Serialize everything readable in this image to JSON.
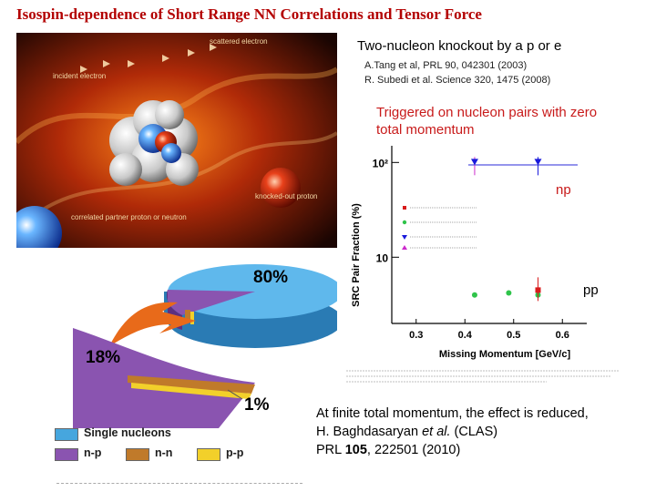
{
  "title": "Isospin-dependence of Short Range NN Correlations and Tensor Force",
  "photo": {
    "labels": {
      "scattered": "scattered electron",
      "incident": "incident electron",
      "knocked": "knocked-out proton",
      "correlated": "correlated partner proton or neutron"
    }
  },
  "right": {
    "heading": "Two-nucleon knockout by a p or e",
    "ref1": "A.Tang et al, PRL 90, 042301 (2003)",
    "ref2": "R. Subedi et al. Science 320, 1475 (2008)",
    "trigger_line1": "Triggered on nucleon pairs with zero",
    "trigger_line2": "total momentum"
  },
  "chart_data": {
    "type": "scatter",
    "ylabel": "SRC Pair Fraction (%)",
    "xlabel": "Missing Momentum [GeV/c]",
    "x_ticks": [
      "0.3",
      "0.4",
      "0.5",
      "0.6"
    ],
    "y_ticks": [
      "10²",
      "10"
    ],
    "xlim": [
      0.25,
      0.65
    ],
    "yscale": "log",
    "ylim": [
      2,
      150
    ],
    "annotations": [
      "np",
      "pp"
    ],
    "legend_position": "center-left",
    "series": [
      {
        "points": [
          [
            0.42,
            100
          ],
          [
            0.55,
            100
          ]
        ]
      },
      {
        "points": [
          [
            0.42,
            4.0
          ],
          [
            0.49,
            4.2
          ],
          [
            0.55,
            4.0
          ]
        ]
      },
      {
        "points": [
          [
            0.55,
            4.5
          ]
        ]
      }
    ],
    "colors": {
      "triangle": "#1a1adb",
      "marker_red": "#d81b1b",
      "marker_green": "#2fc44a",
      "marker_magenta": "#cc2acc"
    }
  },
  "bottom": {
    "line1": "At finite total momentum, the effect is reduced,",
    "line2a": "H. Baghdasaryan ",
    "line2b": "et al.",
    "line2c": " (CLAS)",
    "line3a": "PRL ",
    "line3b": "105",
    "line3c": ", 222501 (2010)"
  },
  "pie": {
    "pct_80": "80%",
    "pct_18": "18%",
    "pct_1": "1%",
    "legend": {
      "single": "Single nucleons",
      "np": "n-p",
      "nn": "n-n",
      "pp": "p-p"
    },
    "colors": {
      "single": "#46a6de",
      "np": "#8a54b0",
      "nn": "#c07a2a",
      "pp": "#f2d02a"
    }
  }
}
